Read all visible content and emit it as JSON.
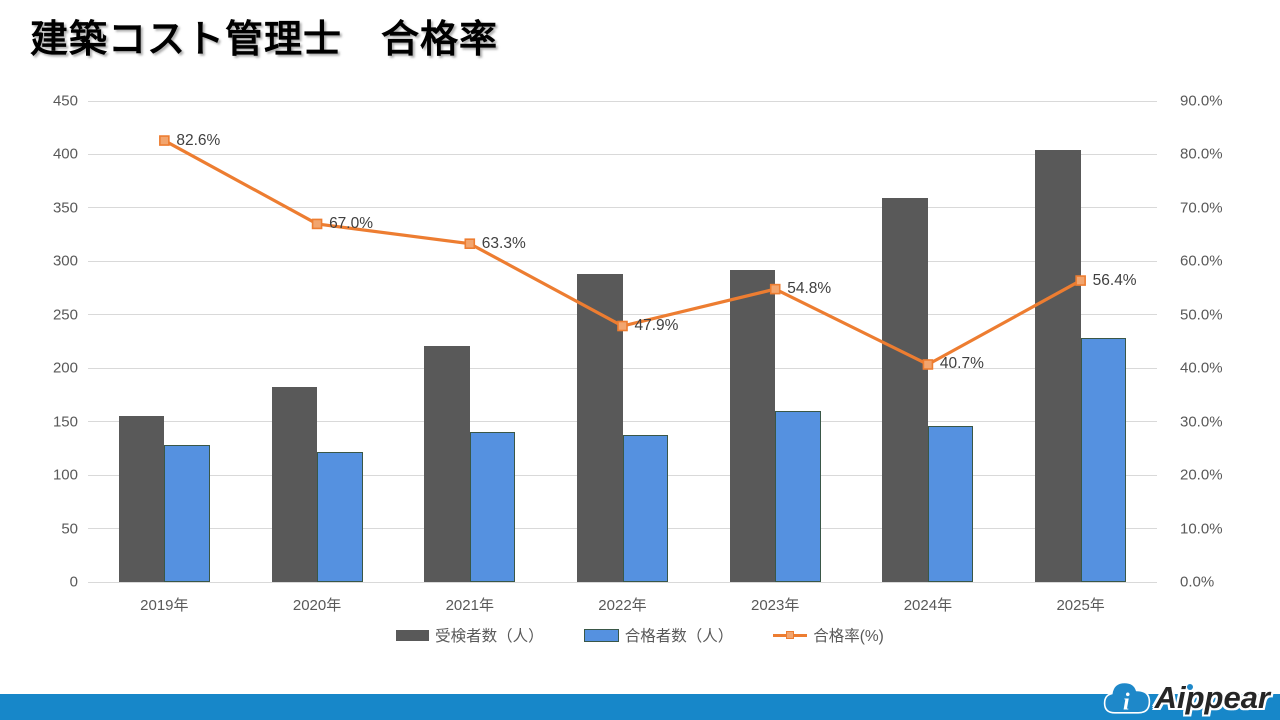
{
  "title": "建築コスト管理士　合格率",
  "chart_data": {
    "type": "combo-bar-line",
    "categories": [
      "2019年",
      "2020年",
      "2021年",
      "2022年",
      "2023年",
      "2024年",
      "2025年"
    ],
    "series": [
      {
        "name": "受検者数（人）",
        "type": "bar",
        "values": [
          155,
          182,
          221,
          288,
          292,
          359,
          404
        ],
        "color": "#595959",
        "axis": "left"
      },
      {
        "name": "合格者数（人）",
        "type": "bar",
        "values": [
          128,
          122,
          140,
          138,
          160,
          146,
          228
        ],
        "color": "#5591e0",
        "border_color": "#3a5747",
        "axis": "left"
      },
      {
        "name": "合格率(%)",
        "type": "line",
        "values": [
          82.6,
          67.0,
          63.3,
          47.9,
          54.8,
          40.7,
          56.4
        ],
        "labels": [
          "82.6%",
          "67.0%",
          "63.3%",
          "47.9%",
          "54.8%",
          "40.7%",
          "56.4%"
        ],
        "color": "#ed7d31",
        "marker_fill": "#f2a56e",
        "axis": "right"
      }
    ],
    "left_axis": {
      "min": 0,
      "max": 450,
      "step": 50,
      "ticks": [
        "450",
        "400",
        "350",
        "300",
        "250",
        "200",
        "150",
        "100",
        "50",
        "0"
      ]
    },
    "right_axis": {
      "min": 0,
      "max": 90,
      "step": 10,
      "ticks": [
        "90.0%",
        "80.0%",
        "70.0%",
        "60.0%",
        "50.0%",
        "40.0%",
        "30.0%",
        "20.0%",
        "10.0%",
        "0.0%"
      ]
    },
    "grid": true,
    "grid_color": "#d9d9d9",
    "axis_text_color": "#595959",
    "data_label_color": "#404040",
    "legend_position": "bottom"
  },
  "footer": {
    "logo_text": "Aippear",
    "bar_color": "#1787c9",
    "logo_cloud_color": "#1e88c9"
  }
}
